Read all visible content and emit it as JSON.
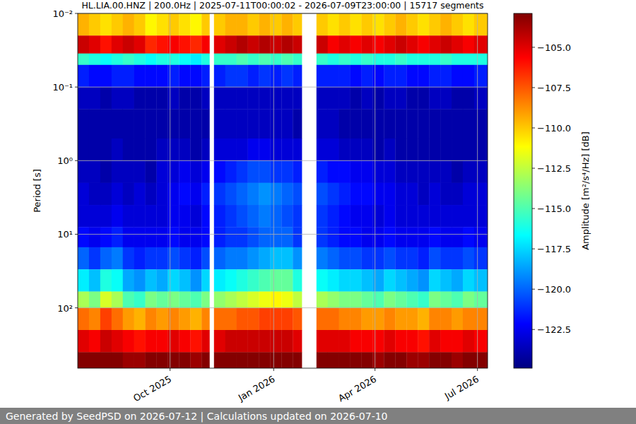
{
  "chart_data": {
    "type": "heatmap",
    "title": "HL.LIA.00.HNZ | 200.0Hz | 2025-07-11T00:00:02 - 2026-07-09T23:00:00 | 15717 segments",
    "ylabel": "Period [s]",
    "footer": "Generated by SeedPSD on 2026-07-12 | Calculations updated on 2026-07-10",
    "log": "y",
    "grid": true,
    "xlim": [
      "2025-07-11",
      "2026-07-10"
    ],
    "xticks": [
      {
        "value": "2025-10-01",
        "label": "Oct 2025"
      },
      {
        "value": "2026-01-01",
        "label": "Jan 2026"
      },
      {
        "value": "2026-04-01",
        "label": "Apr 2026"
      },
      {
        "value": "2026-07-01",
        "label": "Jul 2026"
      }
    ],
    "ylim": [
      660,
      0.01
    ],
    "yticks": [
      {
        "value": 0.01,
        "label": "10⁻²"
      },
      {
        "value": 0.1,
        "label": "10⁻¹"
      },
      {
        "value": 1,
        "label": "10⁰"
      },
      {
        "value": 10,
        "label": "10¹"
      },
      {
        "value": 100,
        "label": "10²"
      }
    ],
    "x_edges": [
      "2025-07-11",
      "2025-07-21",
      "2025-07-31",
      "2025-08-10",
      "2025-08-20",
      "2025-08-30",
      "2025-09-09",
      "2025-09-19",
      "2025-09-29",
      "2025-10-09",
      "2025-10-19",
      "2025-10-29",
      "2025-11-05",
      "2025-11-09",
      "2025-11-19",
      "2025-11-29",
      "2025-12-09",
      "2025-12-19",
      "2025-12-29",
      "2026-01-08",
      "2026-01-18",
      "2026-01-26",
      "2026-02-08",
      "2026-02-18",
      "2026-02-28",
      "2026-03-10",
      "2026-03-20",
      "2026-03-30",
      "2026-04-09",
      "2026-04-19",
      "2026-04-29",
      "2026-05-09",
      "2026-05-19",
      "2026-05-29",
      "2026-06-08",
      "2026-06-18",
      "2026-06-28",
      "2026-07-10"
    ],
    "y_edges": [
      0.01,
      0.02,
      0.035,
      0.05,
      0.1,
      0.2,
      0.5,
      1,
      2,
      4,
      8,
      15,
      30,
      60,
      100,
      200,
      400,
      660
    ],
    "cells": [
      [
        -109.5,
        -104.5,
        -115.5,
        -121.5,
        -123.5,
        -124,
        -124,
        -123.5,
        -123,
        -123,
        -122,
        -120,
        -117,
        -113,
        -108,
        -105,
        -103
      ],
      [
        -110,
        -105,
        -116,
        -122,
        -123.5,
        -124,
        -124,
        -123.5,
        -123.5,
        -123,
        -122.5,
        -121,
        -118,
        -114,
        -108.5,
        -105.5,
        -103
      ],
      [
        -110.5,
        -106,
        -116.5,
        -122,
        -124,
        -124,
        -124,
        -124,
        -123.5,
        -123,
        -122,
        -120,
        -116,
        -112,
        -107,
        -104.5,
        -103
      ],
      [
        -110,
        -105,
        -116,
        -121.5,
        -123.5,
        -124,
        -123.5,
        -123.5,
        -123,
        -122.5,
        -121.5,
        -119.5,
        -116.5,
        -113,
        -108,
        -105,
        -103
      ],
      [
        -109.5,
        -104.5,
        -115.5,
        -121.5,
        -123.5,
        -124,
        -124,
        -123.5,
        -123.5,
        -123,
        -122.5,
        -121,
        -118.5,
        -115,
        -109,
        -105.5,
        -103.5
      ],
      [
        -110,
        -105,
        -116,
        -122,
        -124,
        -124,
        -124,
        -123.5,
        -123,
        -123,
        -122.5,
        -121.5,
        -119,
        -115.5,
        -109.5,
        -106,
        -103.5
      ],
      [
        -111,
        -106.5,
        -116.5,
        -122,
        -124,
        -124,
        -124,
        -124,
        -123.5,
        -123,
        -122.5,
        -121,
        -118,
        -114,
        -108.5,
        -105.5,
        -103
      ],
      [
        -110.5,
        -106,
        -116,
        -122,
        -124,
        -124,
        -123.5,
        -123,
        -123,
        -123,
        -122.5,
        -121,
        -118.5,
        -114.5,
        -109,
        -105.5,
        -103
      ],
      [
        -110,
        -105.5,
        -116,
        -121.5,
        -123.5,
        -124,
        -123.5,
        -123,
        -122.5,
        -122.5,
        -122,
        -120.5,
        -117.5,
        -114,
        -108.5,
        -105,
        -103
      ],
      [
        -110.5,
        -106,
        -116.5,
        -122,
        -124,
        -124,
        -123.5,
        -122.5,
        -122,
        -122.5,
        -122.5,
        -121,
        -118,
        -114.5,
        -109,
        -105.5,
        -103
      ],
      [
        -111,
        -106.5,
        -117,
        -122,
        -124,
        -124,
        -124,
        -123,
        -122.5,
        -123,
        -122.5,
        -121.5,
        -119,
        -115,
        -109.5,
        -106,
        -103.5
      ],
      [
        -110,
        -105.5,
        -116,
        -121.5,
        -123.5,
        -124,
        -123.5,
        -122.5,
        -121.5,
        -122,
        -122,
        -120.5,
        -117.5,
        -114,
        -108.5,
        -105,
        -103
      ],
      null,
      [
        -110,
        -105,
        -115.5,
        -121.5,
        -123.5,
        -123.5,
        -123,
        -122,
        -121,
        -121.5,
        -121.5,
        -120,
        -117,
        -113.5,
        -108,
        -105,
        -103
      ],
      [
        -109.5,
        -104.5,
        -115.5,
        -121,
        -123.5,
        -123.5,
        -123,
        -121.5,
        -120.5,
        -121,
        -121,
        -119.5,
        -116.5,
        -113,
        -108,
        -104.5,
        -103
      ],
      [
        -109.5,
        -104,
        -115,
        -121,
        -123.5,
        -123.5,
        -123,
        -121,
        -120,
        -120.5,
        -121,
        -119.5,
        -116,
        -112.5,
        -107.5,
        -104.5,
        -103
      ],
      [
        -110,
        -104.5,
        -115.5,
        -121.5,
        -123.5,
        -123.5,
        -122.5,
        -120.5,
        -119.5,
        -120,
        -120.5,
        -119,
        -115.5,
        -112,
        -107.5,
        -104.5,
        -103
      ],
      [
        -109.5,
        -104,
        -115,
        -121,
        -123.5,
        -123.5,
        -122.5,
        -120.5,
        -119,
        -119.5,
        -120,
        -118.5,
        -115,
        -111.5,
        -107,
        -104.5,
        -103
      ],
      [
        -110,
        -104.5,
        -115.5,
        -121.5,
        -123.5,
        -123.5,
        -123,
        -121,
        -119.5,
        -120,
        -120,
        -118,
        -114.5,
        -111,
        -107,
        -104.5,
        -103
      ],
      [
        -109.5,
        -104,
        -115,
        -121,
        -123.5,
        -123.5,
        -123,
        -121,
        -120,
        -120.5,
        -120,
        -118,
        -114.5,
        -111.5,
        -107,
        -104.5,
        -103
      ],
      [
        -110,
        -104.5,
        -115.5,
        -121.5,
        -123.5,
        -124,
        -123,
        -121.5,
        -120.5,
        -121,
        -121,
        -119,
        -116,
        -112.5,
        -107.5,
        -105,
        -103
      ],
      null,
      [
        -110,
        -104.5,
        -115.5,
        -121.5,
        -123.5,
        -123.5,
        -123,
        -121.5,
        -120.5,
        -121,
        -121,
        -119.5,
        -116.5,
        -113,
        -108,
        -105,
        -103
      ],
      [
        -110.5,
        -105.5,
        -116,
        -121.5,
        -123.5,
        -123.5,
        -123,
        -122,
        -121,
        -121.5,
        -121.5,
        -120,
        -117,
        -113.5,
        -108,
        -105,
        -103
      ],
      [
        -110,
        -105,
        -115.5,
        -121.5,
        -123.5,
        -124,
        -123.5,
        -122,
        -121.5,
        -122,
        -122,
        -120.5,
        -117.5,
        -114,
        -108.5,
        -105,
        -103
      ],
      [
        -110.5,
        -105.5,
        -116,
        -122,
        -124,
        -124,
        -123.5,
        -122.5,
        -122,
        -122.5,
        -122,
        -120.5,
        -117.5,
        -114,
        -108.5,
        -105.5,
        -103
      ],
      [
        -110,
        -105,
        -115.5,
        -121.5,
        -123.5,
        -124,
        -123.5,
        -122.5,
        -122,
        -122.5,
        -122.5,
        -121,
        -118,
        -114.5,
        -109,
        -105.5,
        -103
      ],
      [
        -110.5,
        -105.5,
        -116,
        -122,
        -124,
        -124,
        -124,
        -123,
        -122.5,
        -123,
        -122.5,
        -121,
        -118.5,
        -115,
        -109,
        -105.5,
        -103.5
      ],
      [
        -110,
        -105,
        -116,
        -121.5,
        -123.5,
        -124,
        -123.5,
        -123,
        -122.5,
        -122.5,
        -122,
        -120.5,
        -117.5,
        -114,
        -108.5,
        -105,
        -103
      ],
      [
        -109.5,
        -104.5,
        -115.5,
        -121.5,
        -123.5,
        -124,
        -124,
        -123.5,
        -123,
        -123,
        -122.5,
        -121,
        -118,
        -114.5,
        -109,
        -105.5,
        -103
      ],
      [
        -110,
        -105,
        -116,
        -122,
        -124,
        -124,
        -124,
        -123.5,
        -123,
        -123,
        -122.5,
        -121,
        -118.5,
        -115,
        -109,
        -105.5,
        -103.5
      ],
      [
        -110.5,
        -105.5,
        -116,
        -122,
        -124,
        -124,
        -124,
        -123.5,
        -123.5,
        -123,
        -122.5,
        -121.5,
        -119,
        -115.5,
        -109.5,
        -106,
        -103.5
      ],
      [
        -110,
        -105,
        -116,
        -121.5,
        -123.5,
        -124,
        -124,
        -123.5,
        -123,
        -123,
        -122,
        -120.5,
        -117.5,
        -114,
        -108.5,
        -105,
        -103
      ],
      [
        -109.5,
        -104.5,
        -115.5,
        -121.5,
        -123.5,
        -124,
        -124,
        -123.5,
        -123.5,
        -123,
        -122.5,
        -121,
        -118,
        -114.5,
        -108.5,
        -105.5,
        -103
      ],
      [
        -110,
        -105,
        -116,
        -122,
        -124,
        -124,
        -124,
        -124,
        -123.5,
        -123,
        -122.5,
        -121,
        -118.5,
        -115,
        -109,
        -105.5,
        -103.5
      ],
      [
        -110.5,
        -105.5,
        -116,
        -122,
        -124,
        -124,
        -124,
        -123.5,
        -123,
        -123,
        -122,
        -120.5,
        -117.5,
        -114,
        -108.5,
        -105,
        -103
      ],
      [
        -110,
        -105,
        -116,
        -121.5,
        -123.5,
        -124,
        -124,
        -123.5,
        -123,
        -123,
        -122.5,
        -121,
        -118,
        -114.5,
        -108.5,
        -105.5,
        -103
      ]
    ],
    "color_bar": {
      "label": "Amplitude [m²/s⁴/Hz] [dB]",
      "range": [
        -124.9,
        -102.9
      ],
      "ticks": [
        {
          "value": -105,
          "label": "−105.0"
        },
        {
          "value": -107.5,
          "label": "−107.5"
        },
        {
          "value": -110,
          "label": "−110.0"
        },
        {
          "value": -112.5,
          "label": "−112.5"
        },
        {
          "value": -115,
          "label": "−115.0"
        },
        {
          "value": -117.5,
          "label": "−117.5"
        },
        {
          "value": -120,
          "label": "−120.0"
        },
        {
          "value": -122.5,
          "label": "−122.5"
        }
      ]
    }
  }
}
